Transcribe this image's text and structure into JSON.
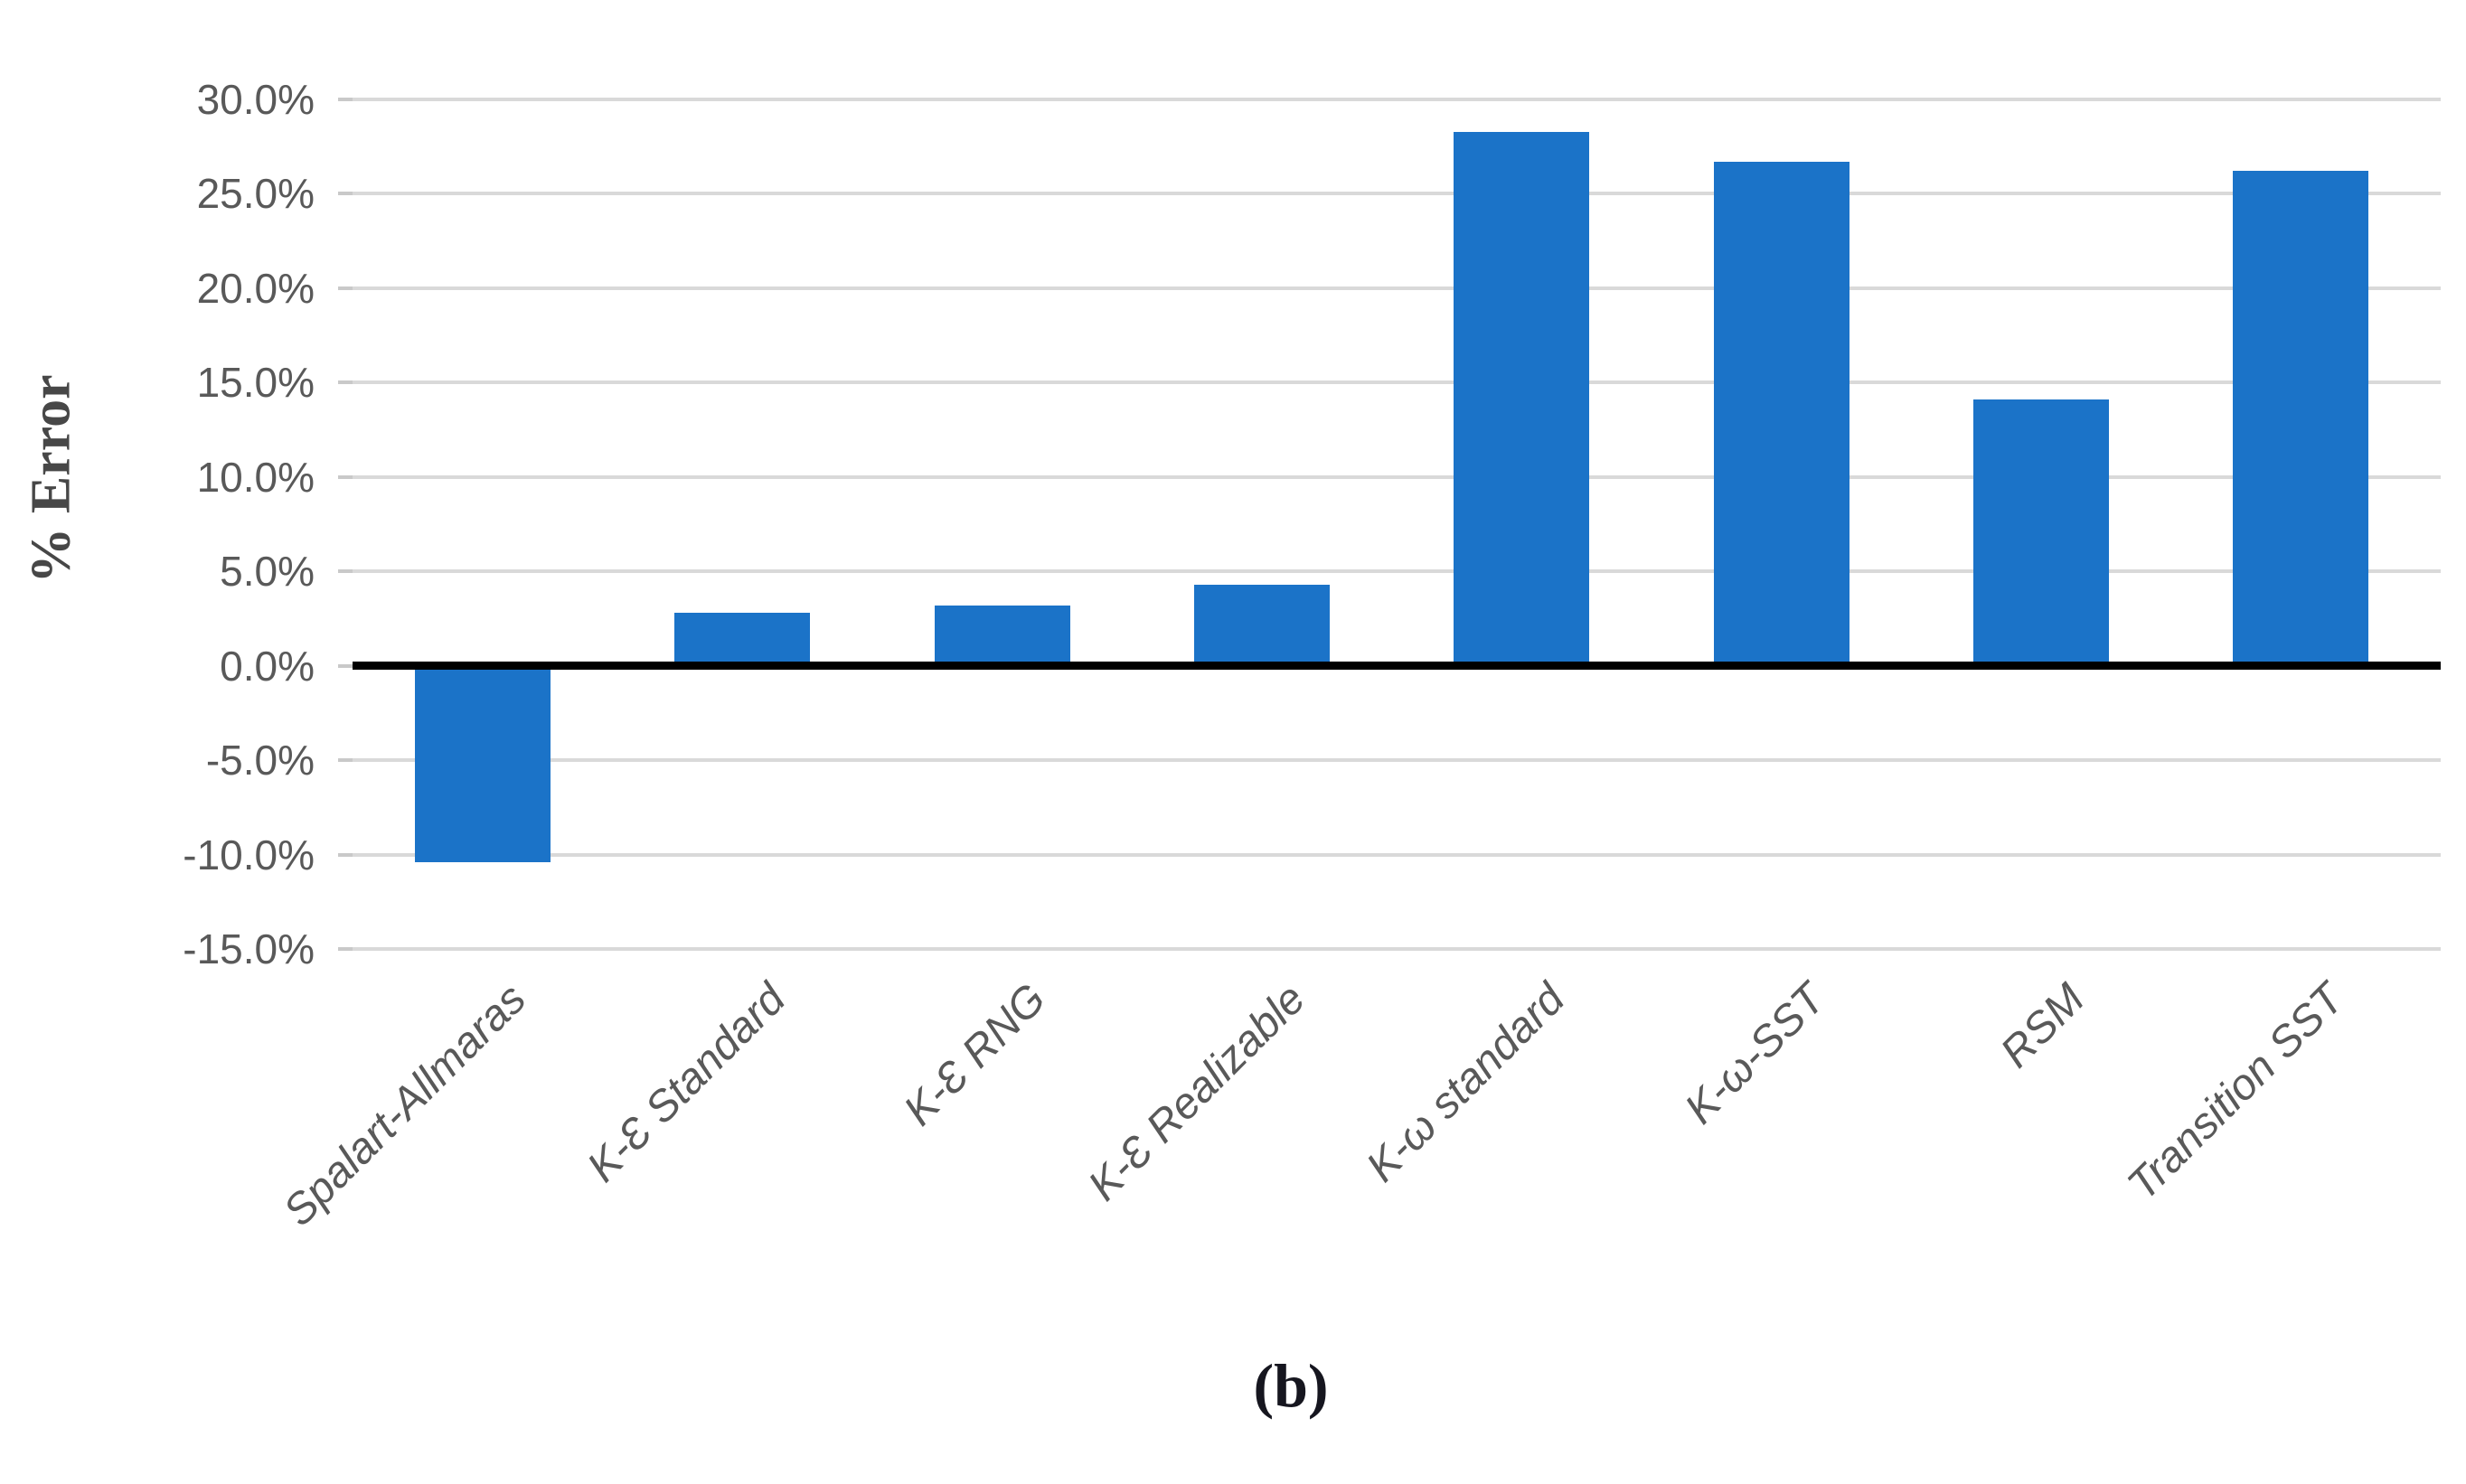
{
  "figure": {
    "caption": "(b)",
    "background_color": "#ffffff"
  },
  "chart_data": {
    "type": "bar",
    "title": "",
    "xlabel": "",
    "ylabel": "% Error",
    "categories": [
      "Spalart-Allmaras",
      "K-Ɛ Standard",
      "K-Ɛ RNG",
      "K-Ɛ Realizable",
      "K-ω standard",
      "K-ω-SST",
      "RSM",
      "Transition SST"
    ],
    "values": [
      -10.4,
      2.8,
      3.2,
      4.3,
      28.3,
      26.7,
      14.1,
      26.2
    ],
    "ylim": [
      -15,
      30
    ],
    "ytick_step": 5,
    "ytick_labels": [
      "30.0%",
      "25.0%",
      "20.0%",
      "15.0%",
      "10.0%",
      "5.0%",
      "0.0%",
      "-5.0%",
      "-10.0%",
      "-15.0%"
    ],
    "grid": true,
    "legend_position": "none",
    "bar_color": "#1b73c8",
    "gridline_color": "#d9d9d9",
    "zero_line_color": "#000000",
    "tick_label_color": "#595959",
    "axis_title_color": "#474747"
  }
}
